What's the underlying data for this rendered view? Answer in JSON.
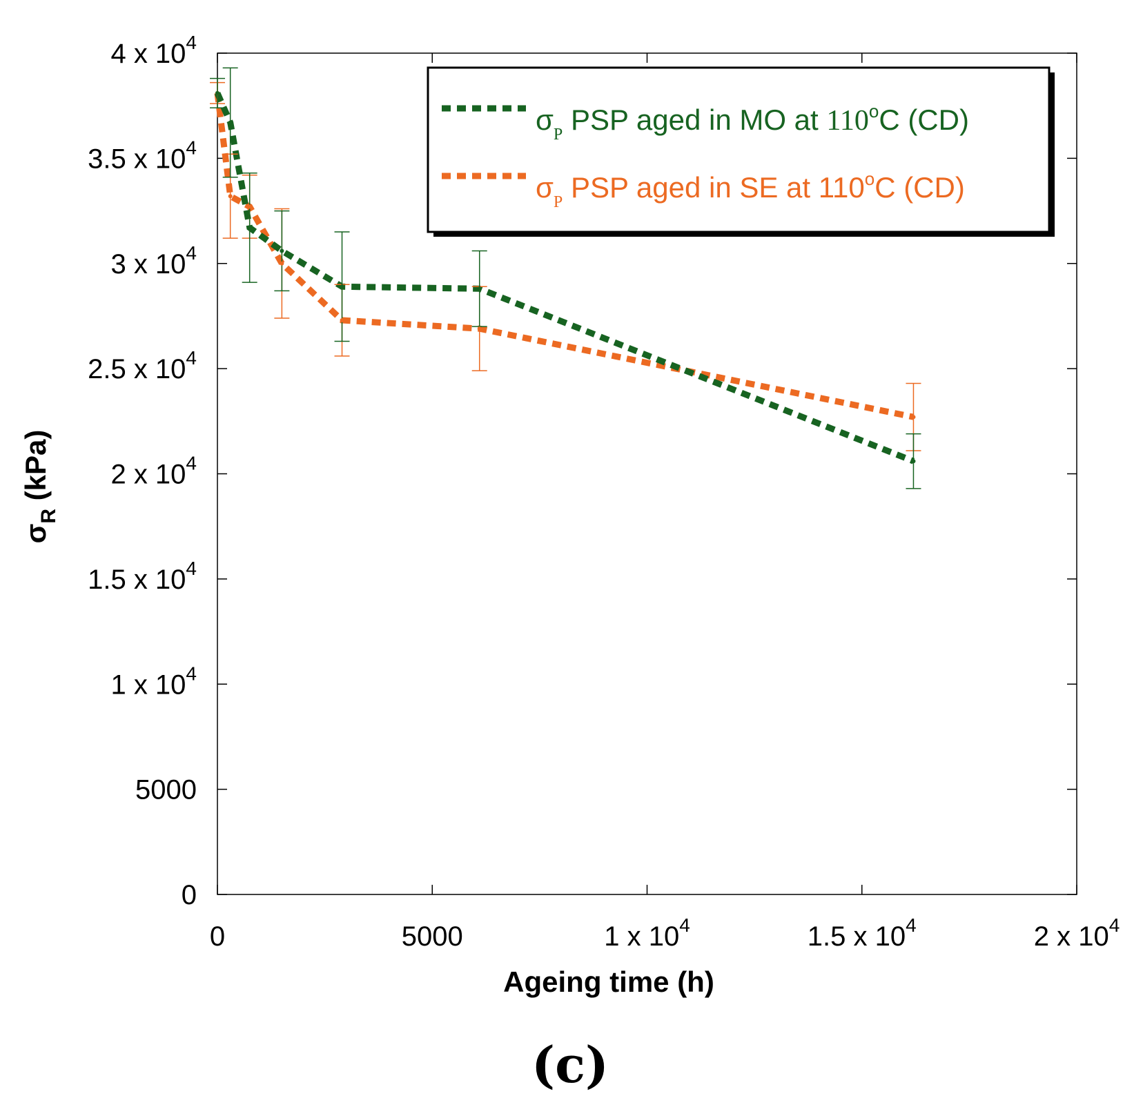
{
  "chart_data": {
    "type": "line",
    "title": "",
    "xlabel": "Ageing time (h)",
    "ylabel": "σR (kPa)",
    "xlim": [
      0,
      20000
    ],
    "ylim": [
      0,
      40000
    ],
    "x_ticks": [
      {
        "value": 0,
        "mantissa": "0",
        "exp": ""
      },
      {
        "value": 5000,
        "mantissa": "5000",
        "exp": ""
      },
      {
        "value": 10000,
        "mantissa": "1 x 10",
        "exp": "4"
      },
      {
        "value": 15000,
        "mantissa": "1.5 x 10",
        "exp": "4"
      },
      {
        "value": 20000,
        "mantissa": "2 x 10",
        "exp": "4"
      }
    ],
    "y_ticks": [
      {
        "value": 0,
        "mantissa": "0",
        "exp": ""
      },
      {
        "value": 5000,
        "mantissa": "5000",
        "exp": ""
      },
      {
        "value": 10000,
        "mantissa": "1 x 10",
        "exp": "4"
      },
      {
        "value": 15000,
        "mantissa": "1.5 x 10",
        "exp": "4"
      },
      {
        "value": 20000,
        "mantissa": "2 x 10",
        "exp": "4"
      },
      {
        "value": 25000,
        "mantissa": "2.5 x 10",
        "exp": "4"
      },
      {
        "value": 30000,
        "mantissa": "3 x 10",
        "exp": "4"
      },
      {
        "value": 35000,
        "mantissa": "3.5 x 10",
        "exp": "4"
      },
      {
        "value": 40000,
        "mantissa": "4 x 10",
        "exp": "4"
      }
    ],
    "series": [
      {
        "name": "σP PSP aged in MO at 110oC (CD)",
        "color": "#176321",
        "x": [
          0,
          300,
          750,
          1500,
          2900,
          6100,
          16200
        ],
        "y": [
          38100,
          36700,
          31700,
          30600,
          28900,
          28800,
          20600
        ],
        "err": [
          700,
          2600,
          2600,
          1900,
          2600,
          1800,
          1300
        ]
      },
      {
        "name": "σP PSP aged in SE at 110oC (CD)",
        "color": "#ec6a22",
        "x": [
          0,
          300,
          750,
          1500,
          2900,
          6100,
          16200
        ],
        "y": [
          38100,
          33200,
          32700,
          30000,
          27300,
          26900,
          22700
        ],
        "err": [
          500,
          2000,
          1500,
          2600,
          1700,
          2000,
          1600
        ]
      }
    ],
    "legend": {
      "position": "top-right",
      "entries": [
        {
          "sigma": "σ",
          "sub": "P",
          "text": " PSP aged in MO at ",
          "temp": "110",
          "sup": "o",
          "tail": "C (CD)"
        },
        {
          "sigma": "σ",
          "sub": "P",
          "text": " PSP aged in SE at 110",
          "temp": "",
          "sup": "o",
          "tail": "C (CD)"
        }
      ]
    },
    "panel_label": "(c)",
    "ylabel_parts": {
      "sigma": "σ",
      "sub": "R",
      "rest": " (kPa)"
    }
  }
}
